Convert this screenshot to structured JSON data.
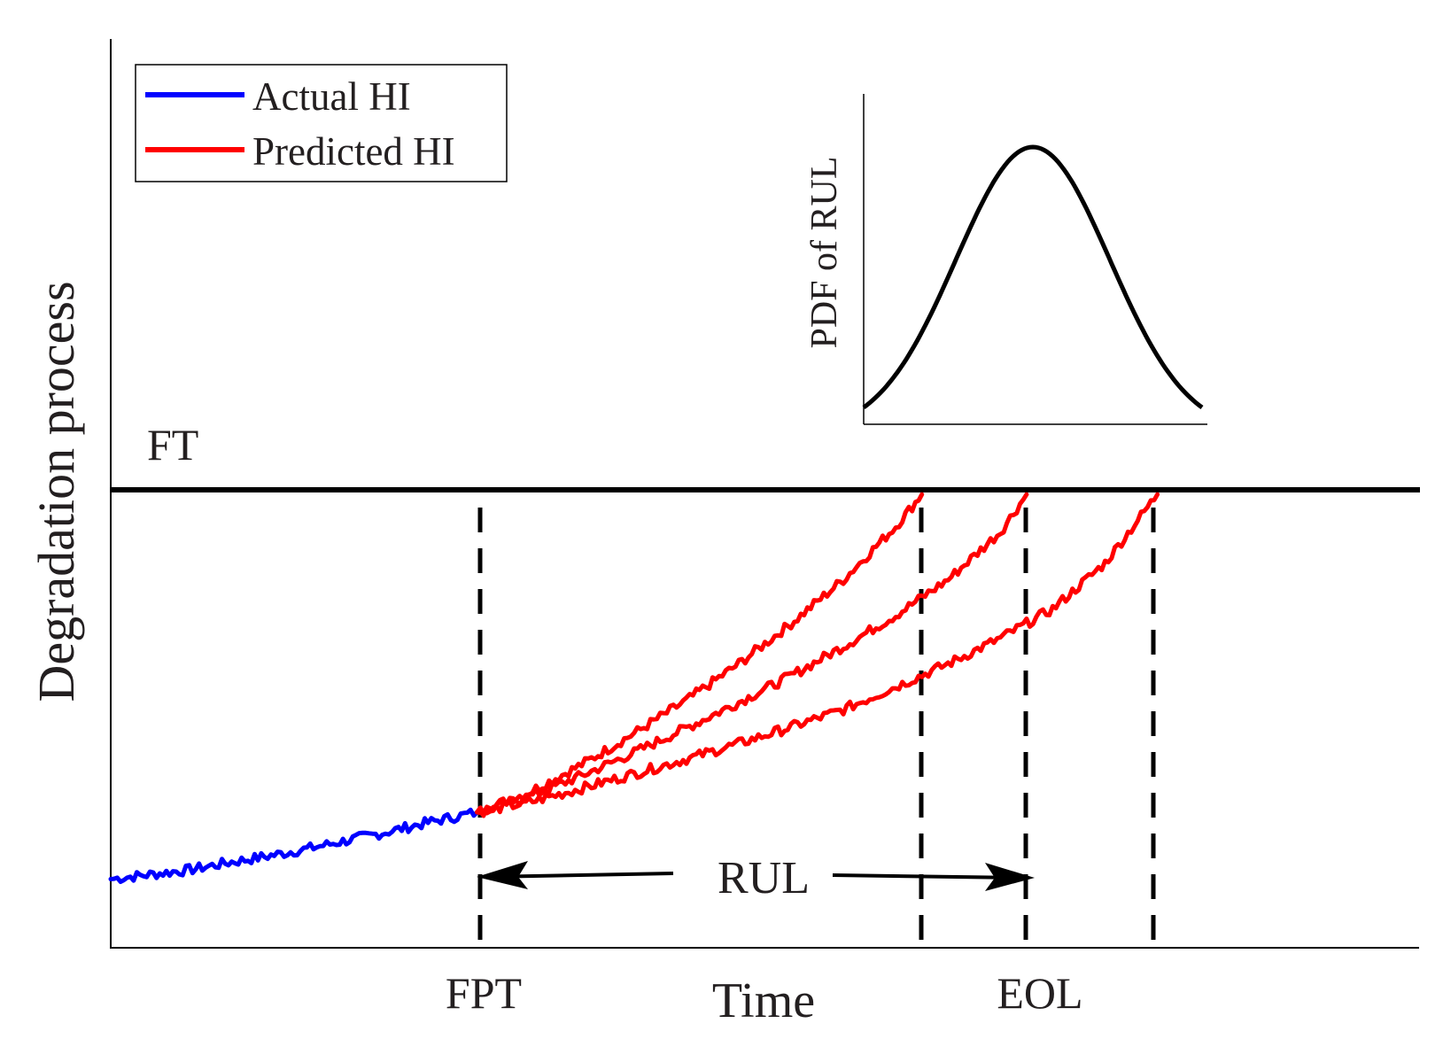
{
  "chart_data": {
    "type": "line",
    "title": "",
    "xlabel": "Time",
    "ylabel": "Degradation process",
    "xlim": [
      0,
      100
    ],
    "ylim": [
      0,
      100
    ],
    "threshold": {
      "label": "FT",
      "value": 50
    },
    "markers": [
      {
        "label": "FPT",
        "x": 28
      },
      {
        "label": "",
        "x": 62
      },
      {
        "label": "EOL",
        "x": 70
      },
      {
        "label": "",
        "x": 80
      }
    ],
    "rul": {
      "label": "RUL",
      "from_x": 28,
      "to_x": 70,
      "y": 7.5
    },
    "series": [
      {
        "name": "Actual HI",
        "color": "#0000ff",
        "x": [
          0,
          3,
          6,
          9,
          12,
          15,
          18,
          21,
          24,
          28
        ],
        "y": [
          7.5,
          8.0,
          8.5,
          9.3,
          10.0,
          10.8,
          11.7,
          12.6,
          13.6,
          14.8
        ]
      },
      {
        "name": "Predicted HI",
        "color": "#ff0000",
        "x": [
          28,
          32,
          36,
          40,
          44,
          48,
          52,
          56,
          60,
          62
        ],
        "y": [
          14.8,
          17.0,
          20.0,
          23.4,
          27.0,
          31.0,
          35.4,
          40.2,
          46.0,
          49.5
        ]
      },
      {
        "name": "Predicted HI",
        "color": "#ff0000",
        "x": [
          28,
          32,
          36,
          40,
          44,
          48,
          52,
          56,
          60,
          64,
          68,
          70
        ],
        "y": [
          14.8,
          16.5,
          18.8,
          21.3,
          24.0,
          26.8,
          29.7,
          32.9,
          36.3,
          40.2,
          45.4,
          49.5
        ]
      },
      {
        "name": "Predicted HI",
        "color": "#ff0000",
        "x": [
          28,
          32,
          36,
          40,
          44,
          48,
          52,
          56,
          60,
          64,
          68,
          72,
          76,
          80
        ],
        "y": [
          14.8,
          15.9,
          17.4,
          19.0,
          20.6,
          22.3,
          24.1,
          26.0,
          28.5,
          31.0,
          33.8,
          37.0,
          42.0,
          49.5
        ]
      }
    ],
    "legend": {
      "position": "top-left",
      "entries": [
        {
          "label": "Actual HI",
          "color": "#0000ff"
        },
        {
          "label": "Predicted HI",
          "color": "#ff0000"
        }
      ]
    },
    "inset": {
      "type": "line",
      "ylabel": "PDF of RUL",
      "distribution": "normal",
      "mean": 0,
      "std": 1,
      "xlim": [
        -2.2,
        2.2
      ]
    }
  }
}
